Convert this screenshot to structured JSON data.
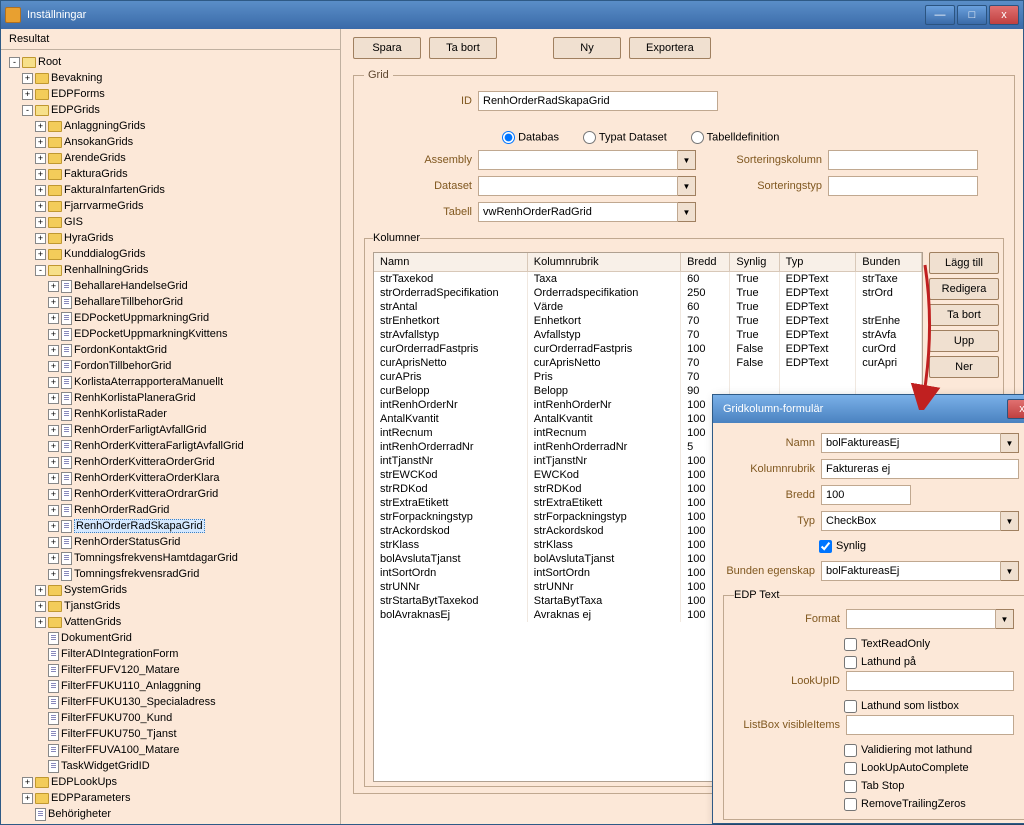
{
  "window": {
    "title": "Inställningar"
  },
  "winBtns": {
    "min": "—",
    "max": "□",
    "close": "x"
  },
  "resultat": {
    "header": "Resultat"
  },
  "tree": {
    "root": "Root",
    "l1": [
      "Bevakning",
      "EDPForms",
      "EDPGrids"
    ],
    "edpLookUps": "EDPLookUps",
    "edpParameters": "EDPParameters",
    "behorigheter": "Behörigheter",
    "edpgrids": [
      "AnlaggningGrids",
      "AnsokanGrids",
      "ArendeGrids",
      "FakturaGrids",
      "FakturaInfartenGrids",
      "FjarrvarmeGrids",
      "GIS",
      "HyraGrids",
      "KunddialogGrids",
      "RenhallningGrids",
      "SystemGrids",
      "TjanstGrids",
      "VattenGrids"
    ],
    "renhallning": [
      "BehallareHandelseGrid",
      "BehallareTillbehorGrid",
      "EDPocketUppmarkningGrid",
      "EDPocketUppmarkningKvittens",
      "FordonKontaktGrid",
      "FordonTillbehorGrid",
      "KorlistaAterrapporteraManuellt",
      "RenhKorlistaPlaneraGrid",
      "RenhKorlistaRader",
      "RenhOrderFarligtAvfallGrid",
      "RenhOrderKvitteraFarligtAvfallGrid",
      "RenhOrderKvitteraOrderGrid",
      "RenhOrderKvitteraOrderKlara",
      "RenhOrderKvitteraOrdrarGrid",
      "RenhOrderRadGrid",
      "RenhOrderRadSkapaGrid",
      "RenhOrderStatusGrid",
      "TomningsfrekvensHamtdagarGrid",
      "TomningsfrekvensradGrid"
    ],
    "edpgrids_docs": [
      "DokumentGrid",
      "FilterADIntegrationForm",
      "FilterFFUFV120_Matare",
      "FilterFFUKU110_Anlaggning",
      "FilterFFUKU130_Specialadress",
      "FilterFFUKU700_Kund",
      "FilterFFUKU750_Tjanst",
      "FilterFFUVA100_Matare",
      "TaskWidgetGridID"
    ]
  },
  "topButtons": {
    "spara": "Spara",
    "taBort": "Ta bort",
    "ny": "Ny",
    "exportera": "Exportera"
  },
  "gridFs": {
    "legend": "Grid",
    "idLbl": "ID",
    "idVal": "RenhOrderRadSkapaGrid",
    "radioDb": "Databas",
    "radioTd": "Typat Dataset",
    "radioTdef": "Tabelldefinition",
    "assemblyLbl": "Assembly",
    "assemblyVal": "",
    "datasetLbl": "Dataset",
    "datasetVal": "",
    "tabelLbl": "Tabell",
    "tabelVal": "vwRenhOrderRadGrid",
    "sortKolLbl": "Sorteringskolumn",
    "sortKolVal": "",
    "sortTypLbl": "Sorteringstyp",
    "sortTypVal": ""
  },
  "kolFs": {
    "legend": "Kolumner",
    "cols": [
      "Namn",
      "Kolumnrubrik",
      "Bredd",
      "Synlig",
      "Typ",
      "Bunden"
    ],
    "btns": {
      "lagg": "Lägg till",
      "redigera": "Redigera",
      "taBort": "Ta bort",
      "upp": "Upp",
      "ner": "Ner"
    },
    "rows": [
      [
        "strTaxekod",
        "Taxa",
        "60",
        "True",
        "EDPText",
        "strTaxe"
      ],
      [
        "strOrderradSpecifikation",
        "Orderradspecifikation",
        "250",
        "True",
        "EDPText",
        "strOrd"
      ],
      [
        "strAntal",
        "Värde",
        "60",
        "True",
        "EDPText",
        ""
      ],
      [
        "strEnhetkort",
        "Enhetkort",
        "70",
        "True",
        "EDPText",
        "strEnhe"
      ],
      [
        "strAvfallstyp",
        "Avfallstyp",
        "70",
        "True",
        "EDPText",
        "strAvfa"
      ],
      [
        "curOrderradFastpris",
        "curOrderradFastpris",
        "100",
        "False",
        "EDPText",
        "curOrd"
      ],
      [
        "curAprisNetto",
        "curAprisNetto",
        "70",
        "False",
        "EDPText",
        "curApri"
      ],
      [
        "curAPris",
        "Pris",
        "70",
        "",
        "",
        ""
      ],
      [
        "curBelopp",
        "Belopp",
        "90",
        "",
        "",
        ""
      ],
      [
        "intRenhOrderNr",
        "intRenhOrderNr",
        "100",
        "",
        "",
        ""
      ],
      [
        "AntalKvantit",
        "AntalKvantit",
        "100",
        "",
        "",
        ""
      ],
      [
        "intRecnum",
        "intRecnum",
        "100",
        "",
        "",
        ""
      ],
      [
        "intRenhOrderradNr",
        "intRenhOrderradNr",
        "5",
        "",
        "",
        ""
      ],
      [
        "intTjanstNr",
        "intTjanstNr",
        "100",
        "",
        "",
        ""
      ],
      [
        "strEWCKod",
        "EWCKod",
        "100",
        "",
        "",
        ""
      ],
      [
        "strRDKod",
        "strRDKod",
        "100",
        "",
        "",
        ""
      ],
      [
        "strExtraEtikett",
        "strExtraEtikett",
        "100",
        "",
        "",
        ""
      ],
      [
        "strForpackningstyp",
        "strForpackningstyp",
        "100",
        "",
        "",
        ""
      ],
      [
        "strAckordskod",
        "strAckordskod",
        "100",
        "",
        "",
        ""
      ],
      [
        "strKlass",
        "strKlass",
        "100",
        "",
        "",
        ""
      ],
      [
        "bolAvslutaTjanst",
        "bolAvslutaTjanst",
        "100",
        "",
        "",
        ""
      ],
      [
        "intSortOrdn",
        "intSortOrdn",
        "100",
        "",
        "",
        ""
      ],
      [
        "strUNNr",
        "strUNNr",
        "100",
        "",
        "",
        ""
      ],
      [
        "strStartaBytTaxekod",
        "StartaBytTaxa",
        "100",
        "",
        "",
        ""
      ],
      [
        "bolAvraknasEj",
        "Avraknas ej",
        "100",
        "",
        "",
        ""
      ]
    ]
  },
  "dialog": {
    "title": "Gridkolumn-formulär",
    "namnLbl": "Namn",
    "namnVal": "bolFaktureasEj",
    "kolLbl": "Kolumnrubrik",
    "kolVal": "Faktureras ej",
    "breddLbl": "Bredd",
    "breddVal": "100",
    "typLbl": "Typ",
    "typVal": "CheckBox",
    "synlig": "Synlig",
    "bundenLbl": "Bunden egenskap",
    "bundenVal": "bolFaktureasEj",
    "edpLegend": "EDP Text",
    "formatLbl": "Format",
    "formatVal": "",
    "textRO": "TextReadOnly",
    "lathund": "Lathund på",
    "lookupLbl": "LookUpID",
    "lookupVal": "",
    "lathundLB": "Lathund som listbox",
    "listBoxLbl": "ListBox visibleItems",
    "listBoxVal": "",
    "valLathund": "Validiering mot lathund",
    "lookupAC": "LookUpAutoComplete",
    "tabStop": "Tab Stop",
    "removeTZ": "RemoveTrailingZeros"
  },
  "colors": {
    "accent": "#805820",
    "treeLine": "#888"
  }
}
